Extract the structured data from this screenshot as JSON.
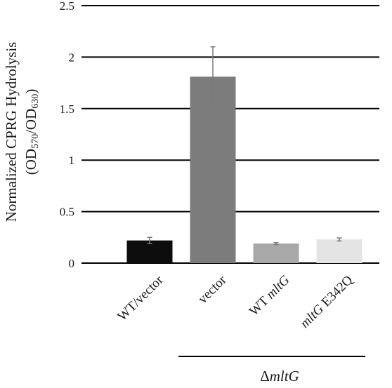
{
  "chart_data": {
    "type": "bar",
    "categories": [
      {
        "parts": [
          {
            "text": "WT/vector",
            "italic": false
          }
        ]
      },
      {
        "parts": [
          {
            "text": "vector",
            "italic": false
          }
        ]
      },
      {
        "parts": [
          {
            "text": "WT ",
            "italic": false
          },
          {
            "text": "mltG",
            "italic": true
          }
        ]
      },
      {
        "parts": [
          {
            "text": "mltG",
            "italic": true
          },
          {
            "text": " E342Q",
            "italic": false
          }
        ]
      }
    ],
    "values": [
      0.22,
      1.81,
      0.19,
      0.23
    ],
    "errors": [
      0.03,
      0.29,
      0.01,
      0.015
    ],
    "bar_colors": [
      "#0d0d0d",
      "#7c7c7c",
      "#a8a8a8",
      "#e4e4e4"
    ],
    "error_color": "#7a7a7a",
    "ylim": [
      0,
      2.5
    ],
    "yticks": [
      "0",
      "0.5",
      "1",
      "1.5",
      "2",
      "2.5"
    ],
    "ytick_values": [
      0,
      0.5,
      1,
      1.5,
      2,
      2.5
    ],
    "ylabel_line1": "Normalized CPRG Hydrolysis",
    "ylabel_line2": {
      "open": "(OD",
      "sub1": "570",
      "mid": "/OD",
      "sub2": "630",
      "close": ")"
    },
    "group_label": {
      "symbol": "Δ",
      "italic_text": "mltG"
    },
    "grid": true
  }
}
